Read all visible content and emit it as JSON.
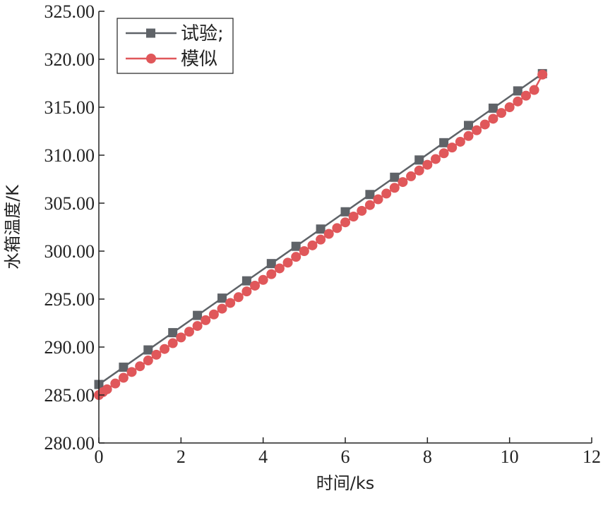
{
  "chart_data": {
    "type": "line",
    "title": "",
    "xlabel": "时间/ks",
    "ylabel": "水箱温度/K",
    "xlim": [
      0,
      12
    ],
    "ylim": [
      280,
      325
    ],
    "x_ticks": [
      0,
      2,
      4,
      6,
      8,
      10,
      12
    ],
    "y_ticks": [
      "280.00",
      "285.00",
      "290.00",
      "295.00",
      "300.00",
      "305.00",
      "310.00",
      "315.00",
      "320.00",
      "325.00"
    ],
    "grid": false,
    "legend_position": "top-left",
    "series": [
      {
        "name": "试验;",
        "color": "#5f6368",
        "marker": "square",
        "x": [
          0,
          0.6,
          1.2,
          1.8,
          2.4,
          3.0,
          3.6,
          4.2,
          4.8,
          5.4,
          6.0,
          6.6,
          7.2,
          7.8,
          8.4,
          9.0,
          9.6,
          10.2,
          10.8
        ],
        "y": [
          286.1,
          287.9,
          289.7,
          291.5,
          293.3,
          295.1,
          296.9,
          298.7,
          300.5,
          302.3,
          304.1,
          305.9,
          307.7,
          309.5,
          311.3,
          313.1,
          314.9,
          316.7,
          318.5
        ]
      },
      {
        "name": "模似",
        "color": "#e0575a",
        "marker": "circle",
        "x": [
          0,
          0.1,
          0.2,
          0.4,
          0.6,
          0.8,
          1.0,
          1.2,
          1.4,
          1.6,
          1.8,
          2.0,
          2.2,
          2.4,
          2.6,
          2.8,
          3.0,
          3.2,
          3.4,
          3.6,
          3.8,
          4.0,
          4.2,
          4.4,
          4.6,
          4.8,
          5.0,
          5.2,
          5.4,
          5.6,
          5.8,
          6.0,
          6.2,
          6.4,
          6.6,
          6.8,
          7.0,
          7.2,
          7.4,
          7.6,
          7.8,
          8.0,
          8.2,
          8.4,
          8.6,
          8.8,
          9.0,
          9.2,
          9.4,
          9.6,
          9.8,
          10.0,
          10.2,
          10.4,
          10.6,
          10.8
        ],
        "y": [
          285.0,
          285.3,
          285.6,
          286.2,
          286.8,
          287.4,
          288.0,
          288.6,
          289.2,
          289.8,
          290.4,
          291.0,
          291.6,
          292.2,
          292.8,
          293.4,
          294.0,
          294.6,
          295.2,
          295.8,
          296.4,
          297.0,
          297.6,
          298.2,
          298.8,
          299.4,
          300.0,
          300.6,
          301.2,
          301.8,
          302.4,
          303.0,
          303.6,
          304.2,
          304.8,
          305.4,
          306.0,
          306.6,
          307.2,
          307.8,
          308.4,
          309.0,
          309.6,
          310.2,
          310.8,
          311.4,
          312.0,
          312.6,
          313.2,
          313.8,
          314.4,
          315.0,
          315.6,
          316.2,
          316.8,
          318.4
        ]
      }
    ]
  }
}
